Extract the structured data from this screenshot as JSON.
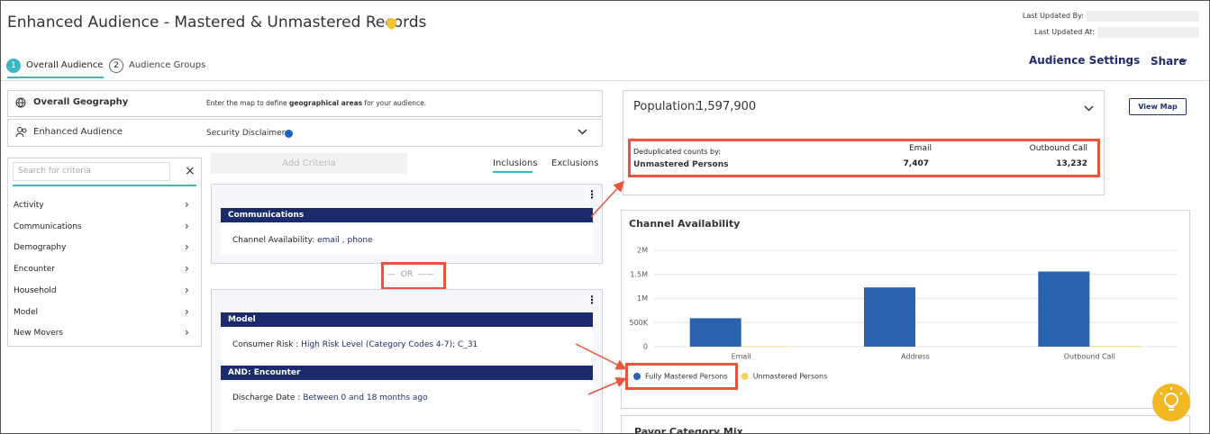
{
  "header": {
    "title": "Enhanced Audience - Mastered & Unmastered Records",
    "last_updated_by": "Last Updated By:",
    "last_updated_at": "Last Updated At:"
  },
  "tabs": [
    {
      "number": "1",
      "label": "Overall Audience"
    },
    {
      "number": "2",
      "label": "Audience Groups"
    }
  ],
  "actions": {
    "audience_settings": "Audience Settings",
    "share": "Share"
  },
  "geography": {
    "title": "Overall Geography",
    "hint_before": "Enter the map to define ",
    "hint_bold": "geographical areas",
    "hint_after": " for your audience."
  },
  "enhanced": {
    "title": "Enhanced Audience",
    "disclaimer": "Security Disclaimer"
  },
  "criteria": {
    "search_placeholder": "Search for criteria",
    "items": [
      "Activity",
      "Communications",
      "Demography",
      "Encounter",
      "Household",
      "Model",
      "New Movers"
    ]
  },
  "builder": {
    "add_criteria": "Add Criteria",
    "tabs": [
      "Inclusions",
      "Exclusions"
    ],
    "separator": "OR",
    "cards": [
      {
        "sections": [
          {
            "header": "Communications",
            "label": "Channel Availability: ",
            "value": "email , phone"
          }
        ]
      },
      {
        "sections": [
          {
            "header": "Model",
            "label": "Consumer Risk : ",
            "value": "High Risk Level (Category Codes 4-7); C_31"
          },
          {
            "header": "AND: Encounter",
            "label": "Discharge Date : ",
            "value": "Between 0 and 18 months ago"
          }
        ]
      }
    ]
  },
  "population": {
    "label": "Population:",
    "value": "1,597,900",
    "view_map": "View Map",
    "dedup_label": "Deduplicated counts by:",
    "row_label": "Unmastered Persons",
    "columns": [
      "Email",
      "Outbound Call"
    ],
    "values": [
      "7,407",
      "13,232"
    ]
  },
  "chart_data": {
    "type": "bar",
    "title": "Channel Availability",
    "categories": [
      "Email",
      "Address",
      "Outbound Call"
    ],
    "series": [
      {
        "name": "Fully Mastered Persons",
        "color": "#2a62ad",
        "values": [
          590000,
          1230000,
          1560000
        ]
      },
      {
        "name": "Unmastered Persons",
        "color": "#f7d154",
        "values": [
          7407,
          0,
          13232
        ]
      }
    ],
    "ylim": [
      0,
      2000000
    ],
    "yticks": [
      0,
      {
        "value": 500000,
        "label": "500K"
      },
      {
        "value": 1000000,
        "label": "1M"
      },
      {
        "value": 1500000,
        "label": "1.5M"
      },
      {
        "value": 2000000,
        "label": "2M"
      }
    ],
    "grid": true
  },
  "payor": {
    "title": "Payor Category Mix"
  }
}
